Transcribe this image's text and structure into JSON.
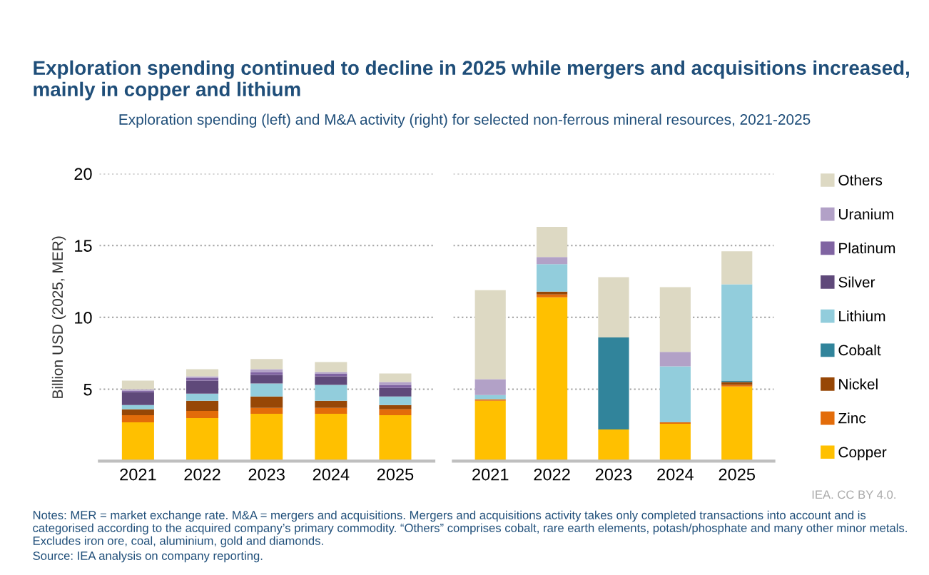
{
  "chart_data": [
    {
      "type": "bar",
      "stacked": true,
      "title": "Exploration spending continued to decline in 2025 while mergers and acquisitions increased, mainly in copper and lithium",
      "subtitle": "Exploration spending (left) and M&A activity (right) for selected non-ferrous mineral resources, 2021-2025",
      "ylabel": "Billion USD (2025, MER)",
      "categories": [
        "2021",
        "2022",
        "2023",
        "2024",
        "2025"
      ],
      "ylim": [
        0,
        20
      ],
      "yticks": [
        {
          "value": 0,
          "label": null
        },
        5,
        10,
        15,
        20
      ],
      "grid": "y",
      "legend": "right",
      "annotations": [
        "IEA. CC BY 4.0.",
        "Notes: MER = market exchange rate. M&A = mergers and acquisitions. Mergers and acquisitions activity takes only completed transactions into account and is categorised according to the acquired company’s primary commodity. “Others” comprises cobalt, rare earth elements, potash/phosphate and many other minor metals. Excludes iron ore, coal, aluminium, gold and diamonds.",
        "Source: IEA analysis on company reporting."
      ],
      "series": [
        {
          "name": "Copper",
          "color": "#ffc000",
          "values": [
            2.7,
            3.0,
            3.3,
            3.3,
            3.2
          ]
        },
        {
          "name": "Zinc",
          "color": "#e36c0a",
          "values": [
            0.5,
            0.5,
            0.4,
            0.4,
            0.4
          ]
        },
        {
          "name": "Nickel",
          "color": "#974706",
          "values": [
            0.4,
            0.7,
            0.8,
            0.5,
            0.3
          ]
        },
        {
          "name": "Cobalt",
          "color": "#31849b",
          "values": [
            0,
            0,
            0,
            0,
            0
          ]
        },
        {
          "name": "Lithium",
          "color": "#92cddc",
          "values": [
            0.3,
            0.5,
            0.9,
            1.1,
            0.6
          ]
        },
        {
          "name": "Silver",
          "color": "#5f497a",
          "values": [
            0.9,
            0.9,
            0.6,
            0.6,
            0.6
          ]
        },
        {
          "name": "Platinum",
          "color": "#8064a2",
          "values": [
            0.1,
            0.2,
            0.2,
            0.2,
            0.2
          ]
        },
        {
          "name": "Uranium",
          "color": "#b2a1c7",
          "values": [
            0.1,
            0.1,
            0.2,
            0.1,
            0.2
          ]
        },
        {
          "name": "Others",
          "color": "#ddd9c3",
          "values": [
            0.6,
            0.5,
            0.7,
            0.7,
            0.6
          ]
        }
      ]
    },
    {
      "type": "bar",
      "stacked": true,
      "categories": [
        "2021",
        "2022",
        "2023",
        "2024",
        "2025"
      ],
      "ylim": [
        0,
        20
      ],
      "yticks": [
        0,
        5,
        10,
        15,
        20
      ],
      "grid": "y",
      "tick_labels": "x",
      "series": [
        {
          "color": "#ffc000",
          "values": [
            4.2,
            11.4,
            2.2,
            2.6,
            5.2
          ]
        },
        {
          "color": "#e36c0a",
          "values": [
            0.1,
            0.2,
            0,
            0.1,
            0.1
          ]
        },
        {
          "color": "#974706",
          "values": [
            0,
            0.2,
            0,
            0,
            0.2
          ]
        },
        {
          "color": "#31849b",
          "values": [
            0,
            0,
            6.4,
            0,
            0.1
          ]
        },
        {
          "color": "#92cddc",
          "values": [
            0.3,
            1.9,
            0,
            3.9,
            6.7
          ]
        },
        {
          "color": "#5f497a",
          "values": [
            0,
            0,
            0,
            0,
            0
          ]
        },
        {
          "color": "#8064a2",
          "values": [
            0,
            0,
            0,
            0,
            0
          ]
        },
        {
          "color": "#b2a1c7",
          "values": [
            1.1,
            0.5,
            0,
            1.0,
            0
          ]
        },
        {
          "color": "#ddd9c3",
          "values": [
            6.2,
            2.1,
            4.2,
            4.5,
            2.3
          ]
        }
      ]
    }
  ]
}
